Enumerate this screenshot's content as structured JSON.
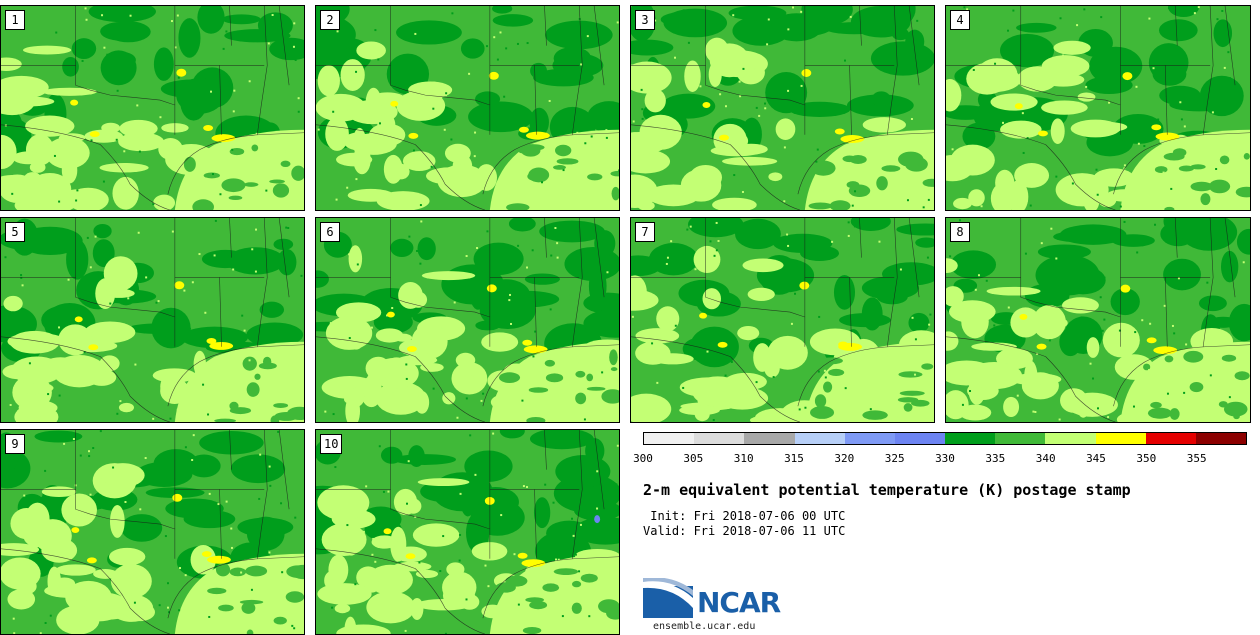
{
  "panels": [
    {
      "label": "1"
    },
    {
      "label": "2"
    },
    {
      "label": "3"
    },
    {
      "label": "4"
    },
    {
      "label": "5"
    },
    {
      "label": "6"
    },
    {
      "label": "7"
    },
    {
      "label": "8"
    },
    {
      "label": "9"
    },
    {
      "label": "10"
    }
  ],
  "colorbar": {
    "colors": [
      "#f0f0f0",
      "#dcdcdc",
      "#a8a8a8",
      "#b7cff7",
      "#7f9af5",
      "#6d84f2",
      "#009e1c",
      "#40b938",
      "#c3ff74",
      "#ffff00",
      "#e50000",
      "#8c0000"
    ],
    "ticks": [
      "300",
      "305",
      "310",
      "315",
      "320",
      "325",
      "330",
      "335",
      "340",
      "345",
      "350",
      "355"
    ]
  },
  "title": "2-m equivalent potential temperature (K) postage stamp",
  "init": " Init: Fri 2018-07-06 00 UTC",
  "valid": "Valid: Fri 2018-07-06 11 UTC",
  "logo": {
    "text": "NCAR",
    "url": "ensemble.ucar.edu"
  },
  "map_colors": {
    "dark": "#009e1c",
    "mid": "#40b938",
    "light": "#c3ff74",
    "yellow": "#ffff00",
    "blue": "#6d84f2"
  }
}
